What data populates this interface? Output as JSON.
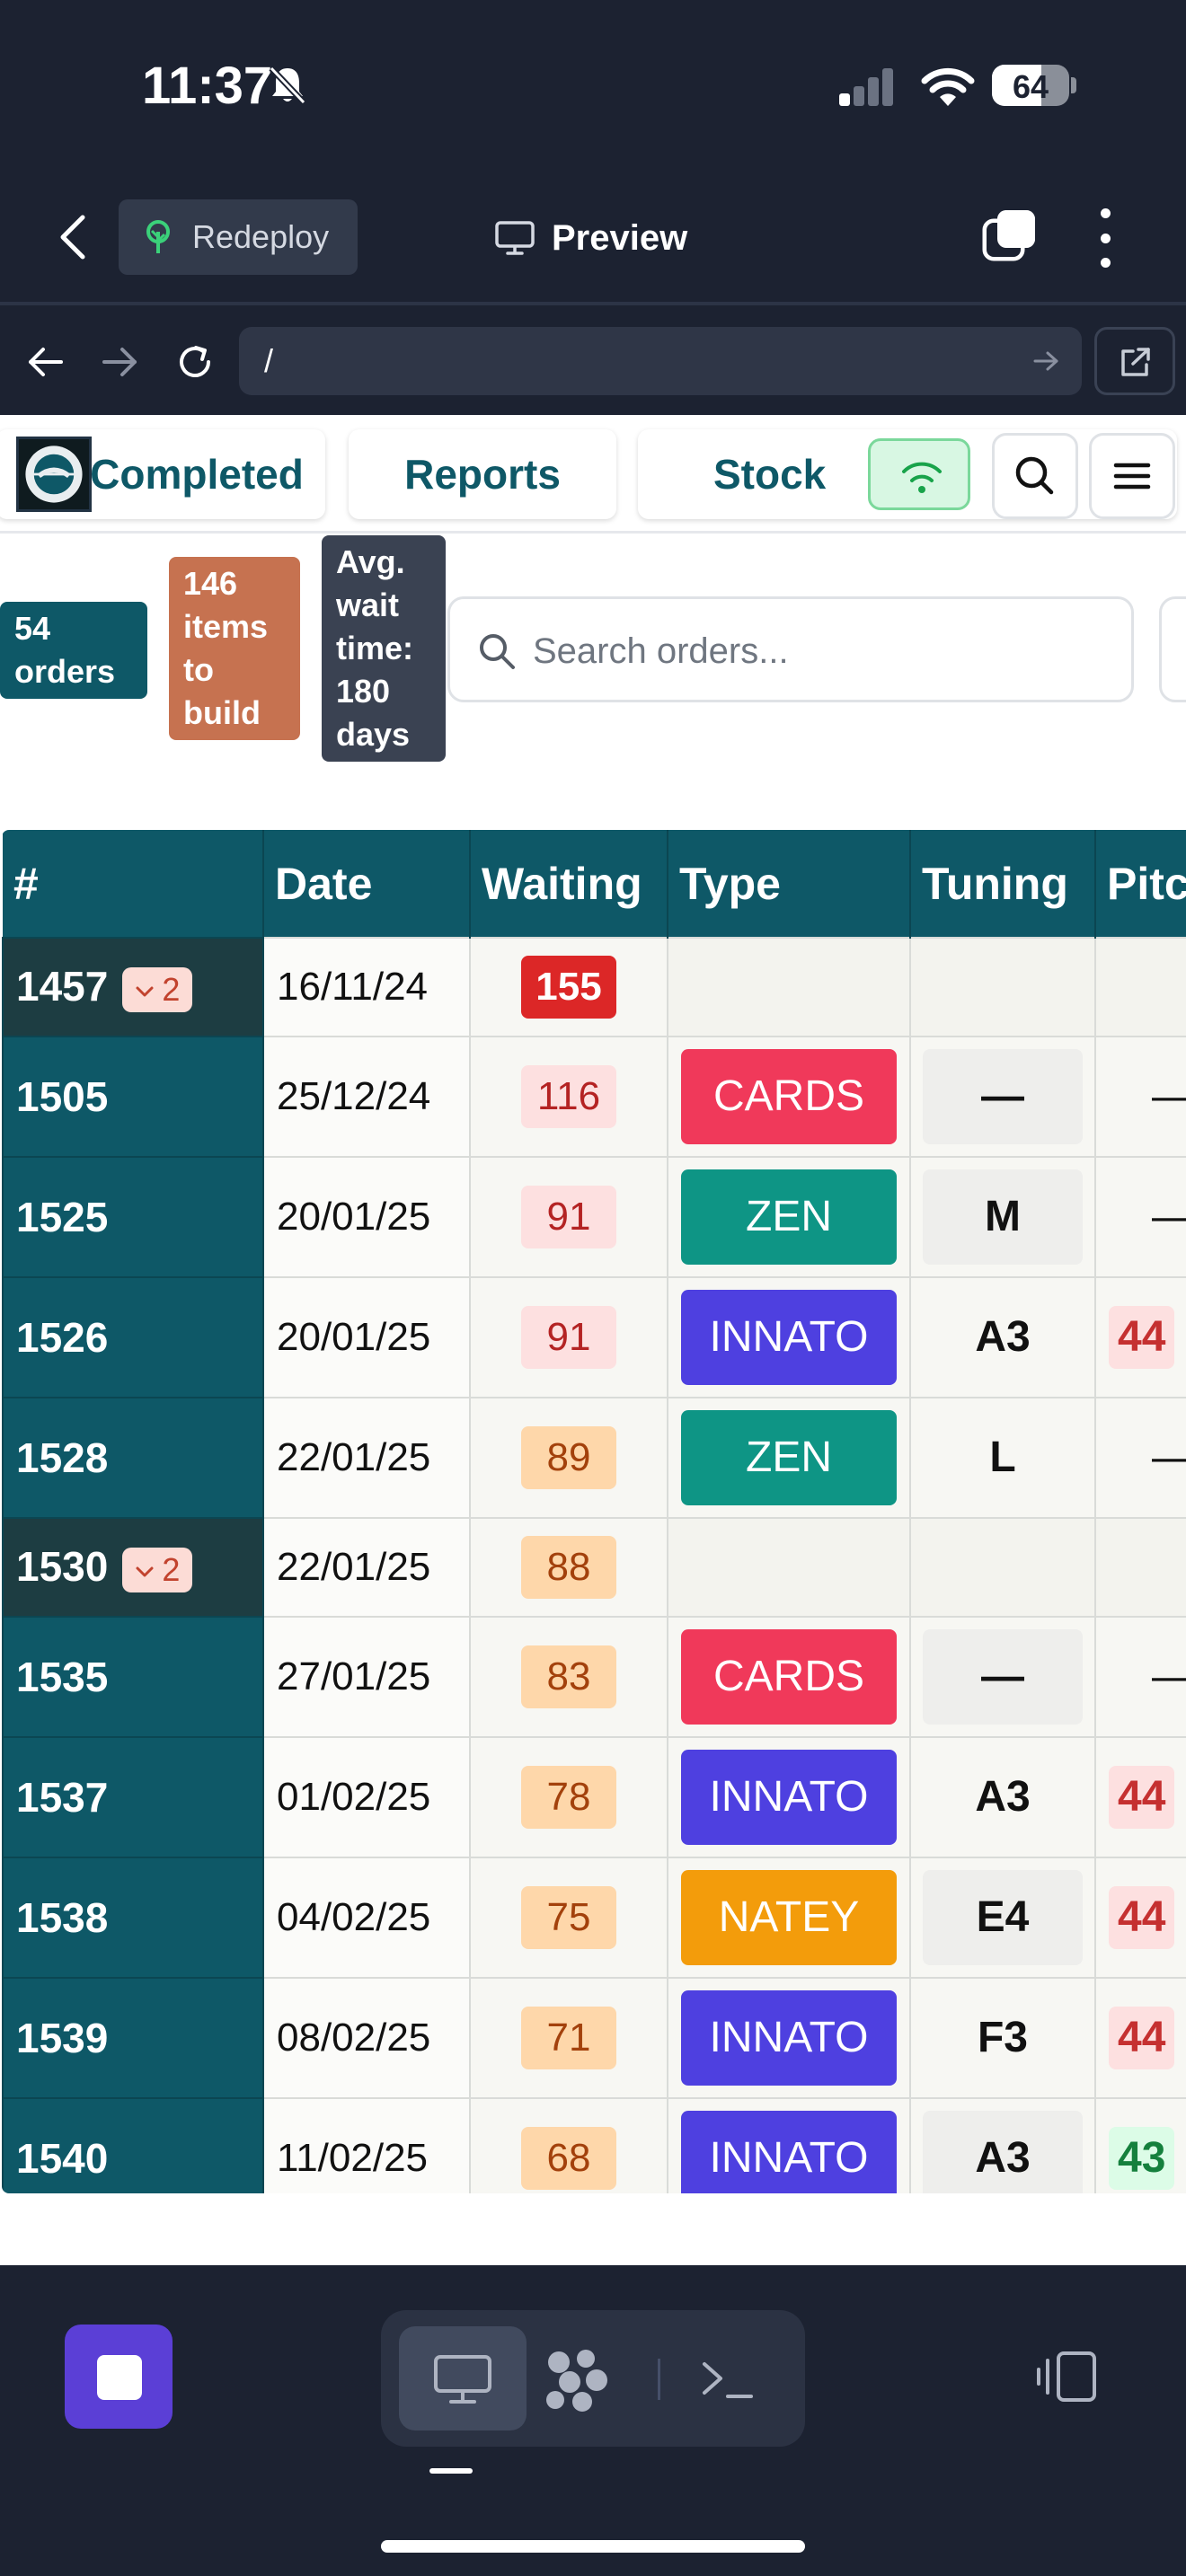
{
  "status_bar": {
    "time": "11:37",
    "battery": "64",
    "battery_level": 0.64
  },
  "app_header": {
    "redeploy_label": "Redeploy",
    "preview_label": "Preview"
  },
  "browser": {
    "url": "/"
  },
  "nav": {
    "tabs": [
      {
        "label": "Completed"
      },
      {
        "label": "Reports"
      },
      {
        "label": "Stock"
      }
    ]
  },
  "stats": {
    "orders": "54 orders",
    "items": "146 items to build",
    "wait": "Avg. wait time: 180 days"
  },
  "search": {
    "placeholder": "Search orders..."
  },
  "table": {
    "headers": [
      "#",
      "Date",
      "Waiting",
      "Type",
      "Tuning",
      "Pitch"
    ],
    "rows": [
      {
        "id": "1457",
        "group_count": "2",
        "date": "16/11/24",
        "waiting": "155",
        "wait_level": "critical",
        "type": "",
        "tuning": "",
        "pitch": "",
        "group": true
      },
      {
        "id": "1505",
        "date": "25/12/24",
        "waiting": "116",
        "wait_level": "high",
        "type": "CARDS",
        "tuning": "—",
        "pitch": "—"
      },
      {
        "id": "1525",
        "date": "20/01/25",
        "waiting": "91",
        "wait_level": "high",
        "type": "ZEN",
        "tuning": "M",
        "pitch": "—"
      },
      {
        "id": "1526",
        "date": "20/01/25",
        "waiting": "91",
        "wait_level": "high",
        "type": "INNATO",
        "tuning": "A3",
        "pitch": "44",
        "pitch_tone": "red"
      },
      {
        "id": "1528",
        "date": "22/01/25",
        "waiting": "89",
        "wait_level": "medium",
        "type": "ZEN",
        "tuning": "L",
        "pitch": "—"
      },
      {
        "id": "1530",
        "group_count": "2",
        "date": "22/01/25",
        "waiting": "88",
        "wait_level": "medium",
        "type": "",
        "tuning": "",
        "pitch": "",
        "group": true
      },
      {
        "id": "1535",
        "date": "27/01/25",
        "waiting": "83",
        "wait_level": "medium",
        "type": "CARDS",
        "tuning": "—",
        "pitch": "—"
      },
      {
        "id": "1537",
        "date": "01/02/25",
        "waiting": "78",
        "wait_level": "medium",
        "type": "INNATO",
        "tuning": "A3",
        "pitch": "44",
        "pitch_tone": "red"
      },
      {
        "id": "1538",
        "date": "04/02/25",
        "waiting": "75",
        "wait_level": "medium",
        "type": "NATEY",
        "tuning": "E4",
        "pitch": "44",
        "pitch_tone": "red"
      },
      {
        "id": "1539",
        "date": "08/02/25",
        "waiting": "71",
        "wait_level": "medium",
        "type": "INNATO",
        "tuning": "F3",
        "pitch": "44",
        "pitch_tone": "red"
      },
      {
        "id": "1540",
        "date": "11/02/25",
        "waiting": "68",
        "wait_level": "medium",
        "type": "INNATO",
        "tuning": "A3",
        "pitch": "43",
        "pitch_tone": "green"
      }
    ]
  },
  "colors": {
    "teal_header": "#0e5867",
    "type_cards": "#f0395a",
    "type_zen": "#0e9585",
    "type_innato": "#4e40e0",
    "type_natey": "#f39c0b",
    "wait_critical_bg": "#dc2727",
    "wait_high_bg": "#fde0e0",
    "wait_medium_bg": "#fed7aa"
  },
  "icons": {
    "status": [
      "bell-slash-icon",
      "signal-icon",
      "wifi-icon",
      "battery-icon"
    ],
    "header": [
      "chevron-left-icon",
      "sprout-icon",
      "monitor-icon",
      "tabs-icon",
      "more-vertical-icon"
    ],
    "browser": [
      "arrow-left-icon",
      "arrow-right-icon",
      "reload-icon",
      "arrow-go-icon",
      "external-link-icon"
    ],
    "page": [
      "logo-icon",
      "wifi-icon",
      "search-icon",
      "menu-icon",
      "chevron-down-icon"
    ],
    "bottom": [
      "stop-icon",
      "desktop-icon",
      "grid-blob-icon",
      "terminal-icon",
      "device-toggle-icon"
    ]
  }
}
